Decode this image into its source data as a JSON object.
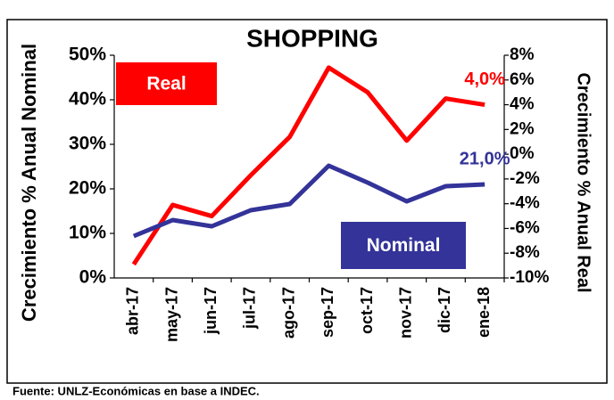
{
  "chart_data": {
    "type": "line",
    "title": "SHOPPING",
    "y_label": "Crecimiento % Anual Nominal",
    "y2_label": "Crecimiento % Anual Real",
    "source": "Fuente: UNLZ-Económicas en base a INDEC.",
    "categories": [
      "abr-17",
      "may-17",
      "jun-17",
      "jul-17",
      "ago-17",
      "sep-17",
      "oct-17",
      "nov-17",
      "dic-17",
      "ene-18"
    ],
    "series": [
      {
        "name": "Real",
        "color": "#ff0000",
        "axis": "y2",
        "values": [
          -8.9,
          -4.1,
          -5.0,
          -1.7,
          1.4,
          7.0,
          5.0,
          1.1,
          4.5,
          4.0
        ],
        "value_labels": [
          null,
          null,
          null,
          null,
          null,
          null,
          null,
          null,
          null,
          "4,0%"
        ]
      },
      {
        "name": "Nominal",
        "color": "#333399",
        "values": [
          9.4,
          13.0,
          11.6,
          15.2,
          16.6,
          25.2,
          21.4,
          17.2,
          20.6,
          21.0
        ],
        "value_labels": [
          null,
          null,
          null,
          null,
          null,
          null,
          null,
          null,
          null,
          "21,0%"
        ]
      }
    ],
    "ylim": [
      0,
      50
    ],
    "yticks": [
      {
        "value": 0,
        "label": "0%"
      },
      {
        "value": 10,
        "label": "10%"
      },
      {
        "value": 20,
        "label": "20%"
      },
      {
        "value": 30,
        "label": "30%"
      },
      {
        "value": 40,
        "label": "40%"
      },
      {
        "value": 50,
        "label": "50%"
      }
    ],
    "y2lim": [
      -10,
      8
    ],
    "y2ticks": [
      {
        "value": -10,
        "label": "-10%"
      },
      {
        "value": -8,
        "label": "-8%"
      },
      {
        "value": -6,
        "label": "-6%"
      },
      {
        "value": -4,
        "label": "-4%"
      },
      {
        "value": -2,
        "label": "-2%"
      },
      {
        "value": 0,
        "label": "0%"
      },
      {
        "value": 2,
        "label": "2%"
      },
      {
        "value": 4,
        "label": "4%"
      },
      {
        "value": 6,
        "label": "6%"
      },
      {
        "value": 8,
        "label": "8%"
      }
    ],
    "grid": false
  }
}
